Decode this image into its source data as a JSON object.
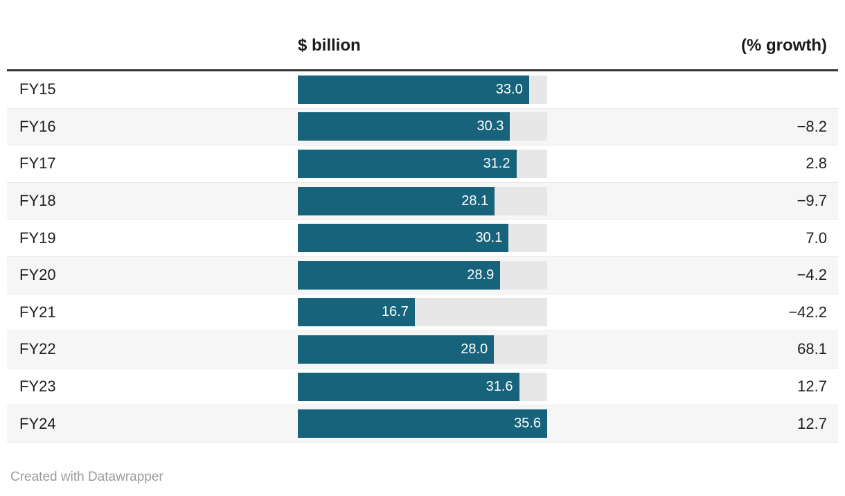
{
  "header": {
    "value_column": "$ billion",
    "growth_column": "(% growth)"
  },
  "footer": {
    "attribution": "Created with Datawrapper"
  },
  "colors": {
    "bar": "#17637c",
    "track": "#e7e7e7",
    "alt_row": "#f6f6f6",
    "header_rule": "#333333",
    "bar_label": "#ffffff",
    "footer_text": "#9b9b9b"
  },
  "chart_data": {
    "type": "bar",
    "orientation": "horizontal",
    "categories": [
      "FY15",
      "FY16",
      "FY17",
      "FY18",
      "FY19",
      "FY20",
      "FY21",
      "FY22",
      "FY23",
      "FY24"
    ],
    "series": [
      {
        "name": "$ billion",
        "values": [
          33.0,
          30.3,
          31.2,
          28.1,
          30.1,
          28.9,
          16.7,
          28.0,
          31.6,
          35.6
        ]
      },
      {
        "name": "(% growth)",
        "values": [
          null,
          -8.2,
          2.8,
          -9.7,
          7.0,
          -4.2,
          -42.2,
          68.1,
          12.7,
          12.7
        ]
      }
    ],
    "value_labels": [
      "33.0",
      "30.3",
      "31.2",
      "28.1",
      "30.1",
      "28.9",
      "16.7",
      "28.0",
      "31.6",
      "35.6"
    ],
    "growth_labels": [
      "",
      "−8.2",
      "2.8",
      "−9.7",
      "7.0",
      "−4.2",
      "−42.2",
      "68.1",
      "12.7",
      "12.7"
    ],
    "xlabel": "$ billion",
    "xmax": 35.6,
    "grid": false,
    "legend": false,
    "value_labels_position": "inside-end",
    "title": ""
  }
}
